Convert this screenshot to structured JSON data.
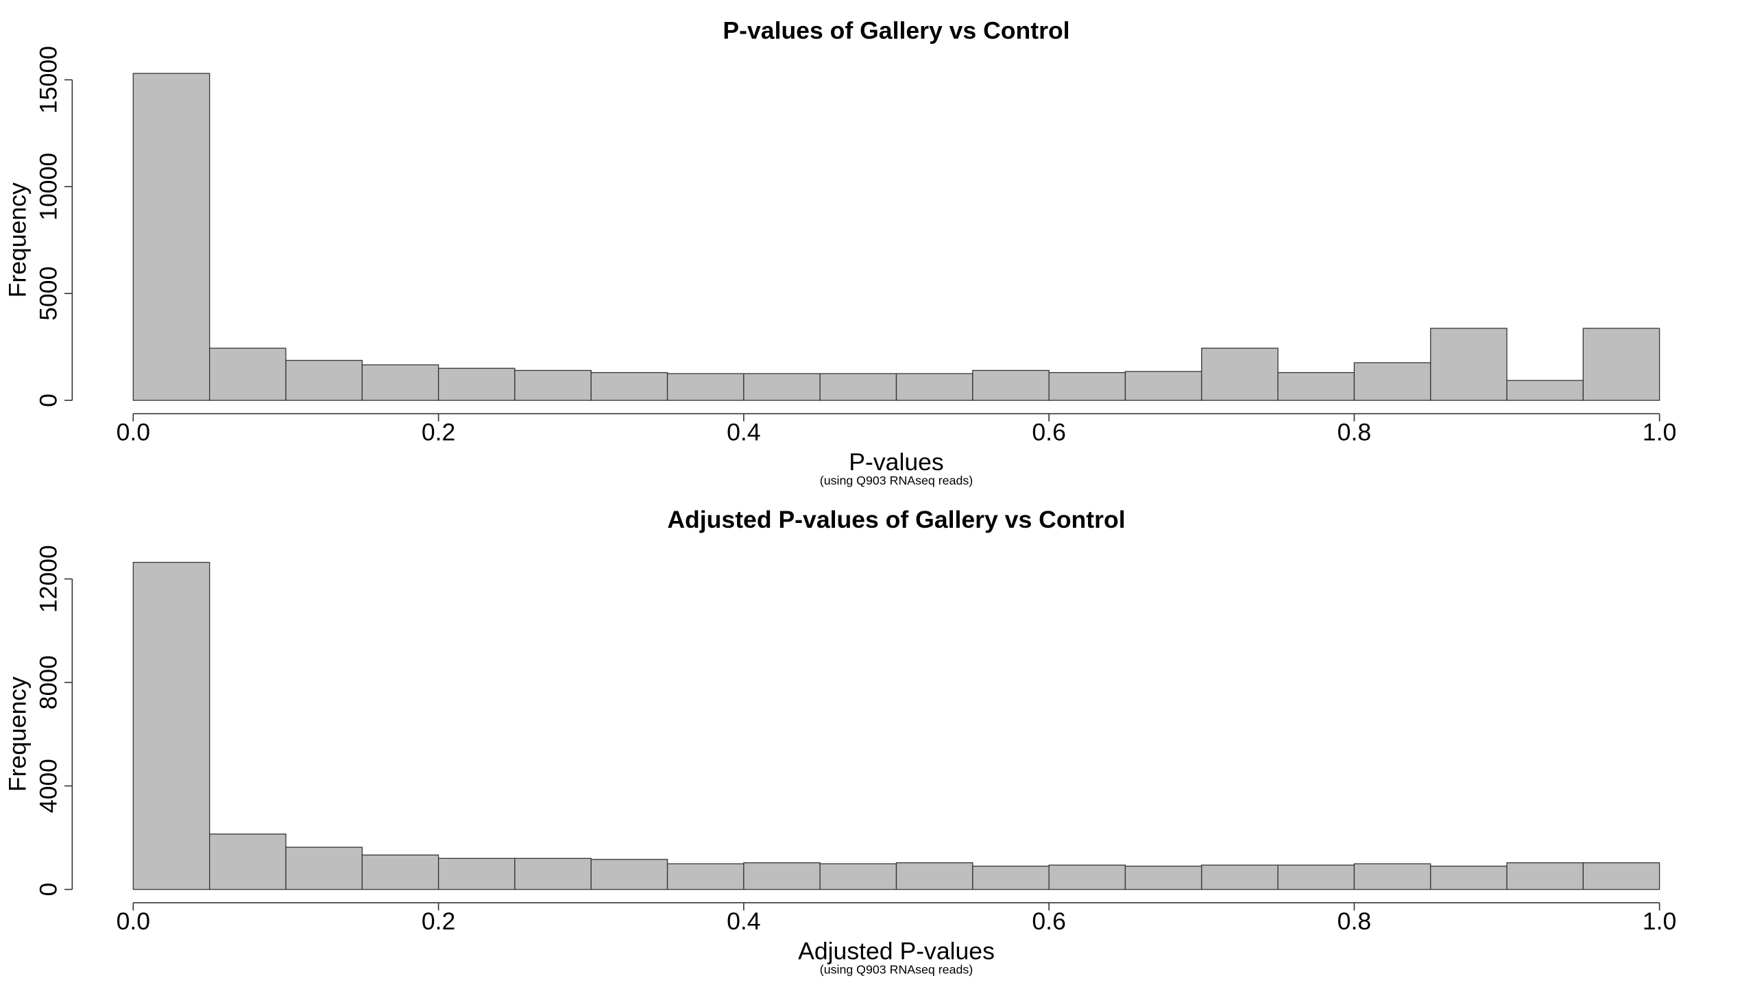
{
  "chart_data": [
    {
      "type": "histogram",
      "title": "P-values of Gallery vs Control",
      "xlabel": "P-values",
      "subtitle": "(using Q903 RNAseq reads)",
      "ylabel": "Frequency",
      "bins": [
        0,
        0.05,
        0.1,
        0.15,
        0.2,
        0.25,
        0.3,
        0.35,
        0.4,
        0.45,
        0.5,
        0.55,
        0.6,
        0.65,
        0.7,
        0.75,
        0.8,
        0.85,
        0.9,
        0.95,
        1
      ],
      "values": [
        15300,
        2440,
        1870,
        1660,
        1500,
        1400,
        1300,
        1250,
        1250,
        1250,
        1250,
        1400,
        1300,
        1350,
        2440,
        1300,
        1760,
        3370,
        930,
        3370
      ],
      "color": "#bebebe",
      "xlim": [
        0,
        1
      ],
      "xticks": [
        {
          "value": 0,
          "label": "0.0"
        },
        0.2,
        0.4,
        0.6,
        0.8,
        {
          "value": 1,
          "label": "1.0"
        }
      ],
      "ylim": [
        0,
        16000
      ],
      "yticks": [
        0,
        5000,
        10000,
        15000
      ]
    },
    {
      "type": "histogram",
      "title": "Adjusted P-values of Gallery vs Control",
      "xlabel": "Adjusted P-values",
      "subtitle": "(using Q903 RNAseq reads)",
      "ylabel": "Frequency",
      "bins": [
        0,
        0.05,
        0.1,
        0.15,
        0.2,
        0.25,
        0.3,
        0.35,
        0.4,
        0.45,
        0.5,
        0.55,
        0.6,
        0.65,
        0.7,
        0.75,
        0.8,
        0.85,
        0.9,
        0.95,
        1
      ],
      "values": [
        12640,
        2140,
        1630,
        1330,
        1200,
        1200,
        1160,
        990,
        1030,
        990,
        1030,
        900,
        940,
        900,
        940,
        940,
        990,
        900,
        1030,
        1030
      ],
      "color": "#bebebe",
      "xlim": [
        0,
        1
      ],
      "xticks": [
        {
          "value": 0,
          "label": "0.0"
        },
        0.2,
        0.4,
        0.6,
        0.8,
        {
          "value": 1,
          "label": "1.0"
        }
      ],
      "ylim": [
        0,
        13000
      ],
      "yticks": [
        0,
        4000,
        8000,
        12000
      ]
    }
  ]
}
